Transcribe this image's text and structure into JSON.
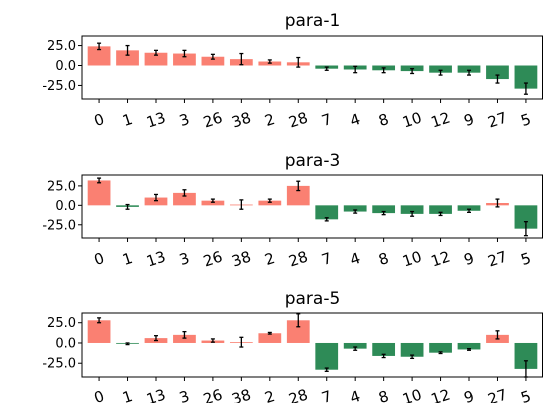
{
  "chart_data": [
    {
      "type": "bar",
      "title": "para-1",
      "categories": [
        "0",
        "1",
        "13",
        "3",
        "26",
        "38",
        "2",
        "28",
        "7",
        "4",
        "8",
        "10",
        "12",
        "9",
        "27",
        "5"
      ],
      "values": [
        24,
        19,
        16,
        15,
        11,
        8,
        5,
        4,
        -4,
        -5,
        -6,
        -7,
        -9,
        -9,
        -17,
        -29
      ],
      "errors": [
        4,
        6,
        3,
        4,
        3,
        7,
        2,
        6,
        2,
        4,
        3,
        3,
        3,
        3,
        5,
        7
      ],
      "yticks": [
        25.0,
        0.0,
        -25.0
      ],
      "ytick_labels": [
        "25.0",
        "0.0",
        "-25.0"
      ],
      "ylim": [
        -42,
        37
      ],
      "xlabel": "",
      "ylabel": ""
    },
    {
      "type": "bar",
      "title": "para-3",
      "categories": [
        "0",
        "1",
        "13",
        "3",
        "26",
        "38",
        "2",
        "28",
        "7",
        "4",
        "8",
        "10",
        "12",
        "9",
        "27",
        "5"
      ],
      "values": [
        32,
        -2,
        10,
        16,
        6,
        1,
        6,
        25,
        -18,
        -8,
        -10,
        -11,
        -11,
        -7,
        3,
        -30
      ],
      "errors": [
        3,
        3,
        4,
        4,
        2,
        6,
        2,
        6,
        2,
        2,
        2,
        3,
        2,
        2,
        5,
        9
      ],
      "yticks": [
        25.0,
        0.0,
        -25.0
      ],
      "ytick_labels": [
        "25.0",
        "0.0",
        "-25.0"
      ],
      "ylim": [
        -42,
        39
      ],
      "xlabel": "",
      "ylabel": ""
    },
    {
      "type": "bar",
      "title": "para-5",
      "categories": [
        "0",
        "1",
        "13",
        "3",
        "26",
        "38",
        "2",
        "28",
        "7",
        "4",
        "8",
        "10",
        "12",
        "9",
        "27",
        "5"
      ],
      "values": [
        28,
        -1,
        6,
        10,
        3,
        1,
        12,
        28,
        -33,
        -7,
        -16,
        -17,
        -12,
        -8,
        10,
        -32
      ],
      "errors": [
        3,
        1,
        3,
        4,
        2,
        6,
        1,
        8,
        2,
        2,
        2,
        2,
        1,
        1,
        5,
        10
      ],
      "yticks": [
        25.0,
        0.0,
        -25.0
      ],
      "ytick_labels": [
        "25.0",
        "0.0",
        "-25.0"
      ],
      "ylim": [
        -42,
        37
      ],
      "xlabel": "",
      "ylabel": ""
    }
  ],
  "colors": {
    "positive": "#fa8072",
    "negative": "#2e8b57",
    "error": "#000000"
  }
}
